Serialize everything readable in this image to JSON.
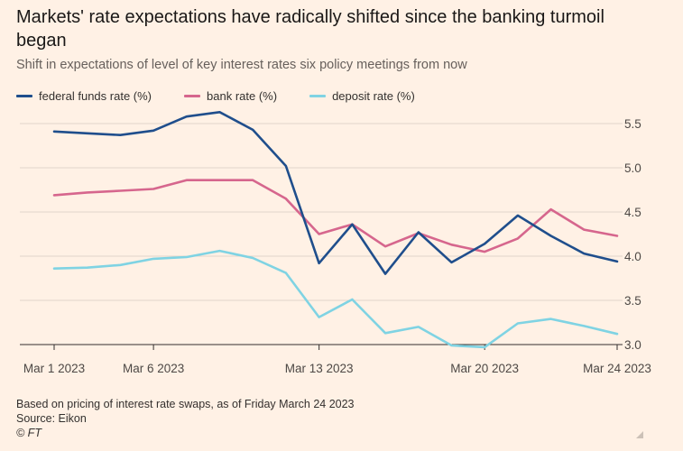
{
  "title": "Markets' rate expectations have radically shifted since the banking turmoil began",
  "subtitle": "Shift in expectations of level of key interest rates six policy meetings from now",
  "footer": {
    "note": "Based on pricing of interest rate swaps, as of Friday March 24 2023",
    "source": "Source: Eikon",
    "credit": "© FT"
  },
  "colors": {
    "federal_funds": "#1F4E8C",
    "bank": "#D6668D",
    "deposit": "#7FD3E3",
    "grid": "#E0D5CB",
    "axis": "#33302E"
  },
  "chart_data": {
    "type": "line",
    "ylim": [
      3.0,
      5.5
    ],
    "yticks": [
      "3.0",
      "3.5",
      "4.0",
      "4.5",
      "5.0",
      "5.5"
    ],
    "x": [
      "Mar 1 2023",
      "Mar 2 2023",
      "Mar 3 2023",
      "Mar 6 2023",
      "Mar 7 2023",
      "Mar 8 2023",
      "Mar 9 2023",
      "Mar 10 2023",
      "Mar 13 2023",
      "Mar 14 2023",
      "Mar 15 2023",
      "Mar 16 2023",
      "Mar 17 2023",
      "Mar 20 2023",
      "Mar 21 2023",
      "Mar 22 2023",
      "Mar 23 2023",
      "Mar 24 2023"
    ],
    "xtick_labels": [
      "Mar 1 2023",
      "Mar 6 2023",
      "Mar 13 2023",
      "Mar 20 2023",
      "Mar 24 2023"
    ],
    "xtick_index": [
      0,
      3,
      8,
      13,
      17
    ],
    "series": [
      {
        "name": "federal funds rate (%)",
        "color": "federal_funds",
        "values": [
          5.41,
          5.39,
          5.37,
          5.42,
          5.58,
          5.63,
          5.43,
          5.02,
          3.92,
          4.36,
          3.8,
          4.27,
          3.93,
          4.14,
          4.46,
          4.23,
          4.03,
          3.94
        ]
      },
      {
        "name": "bank rate (%)",
        "color": "bank",
        "values": [
          4.69,
          4.72,
          4.74,
          4.76,
          4.86,
          4.86,
          4.86,
          4.65,
          4.25,
          4.36,
          4.11,
          4.26,
          4.13,
          4.05,
          4.2,
          4.53,
          4.3,
          4.23
        ]
      },
      {
        "name": "deposit rate (%)",
        "color": "deposit",
        "values": [
          3.86,
          3.87,
          3.9,
          3.97,
          3.99,
          4.06,
          3.98,
          3.81,
          3.31,
          3.51,
          3.13,
          3.2,
          2.99,
          2.97,
          3.24,
          3.29,
          3.21,
          3.12
        ]
      }
    ]
  }
}
